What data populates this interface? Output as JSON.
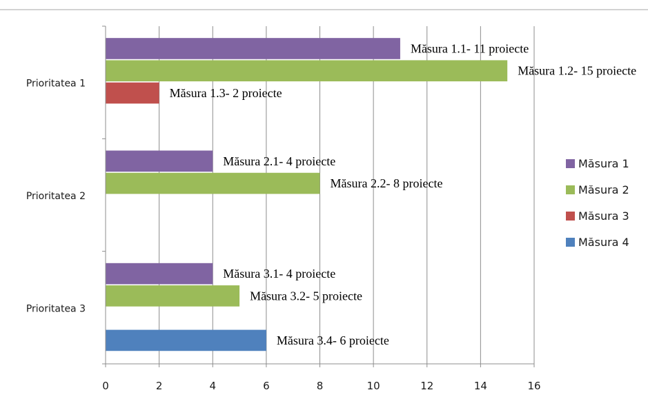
{
  "chart_data": {
    "type": "bar",
    "orientation": "horizontal",
    "categories": [
      "Prioritatea 1",
      "Prioritatea 2",
      "Prioritatea 3"
    ],
    "series": [
      {
        "name": "Măsura 1",
        "color": "#8064a2",
        "values": [
          11,
          4,
          4
        ]
      },
      {
        "name": "Măsura 2",
        "color": "#9bbb59",
        "values": [
          15,
          8,
          5
        ]
      },
      {
        "name": "Măsura 3",
        "color": "#c0504d",
        "values": [
          2,
          null,
          null
        ]
      },
      {
        "name": "Măsura 4",
        "color": "#4f81bd",
        "values": [
          null,
          null,
          6
        ]
      }
    ],
    "data_labels": [
      [
        "Măsura 1.1- 11 proiecte",
        "Măsura 2.1- 4 proiecte",
        "Măsura 3.1- 4 proiecte"
      ],
      [
        "Măsura 1.2- 15 proiecte",
        "Măsura 2.2- 8 proiecte",
        "Măsura 3.2- 5 proiecte"
      ],
      [
        "Măsura 1.3- 2 proiecte",
        null,
        null
      ],
      [
        null,
        null,
        "Măsura 3.4- 6 proiecte"
      ]
    ],
    "xlim": [
      0,
      16
    ],
    "xticks": [
      "0",
      "2",
      "4",
      "6",
      "8",
      "10",
      "12",
      "14",
      "16"
    ],
    "grid": true,
    "legend_position": "right",
    "title": "",
    "xlabel": "",
    "ylabel": ""
  }
}
